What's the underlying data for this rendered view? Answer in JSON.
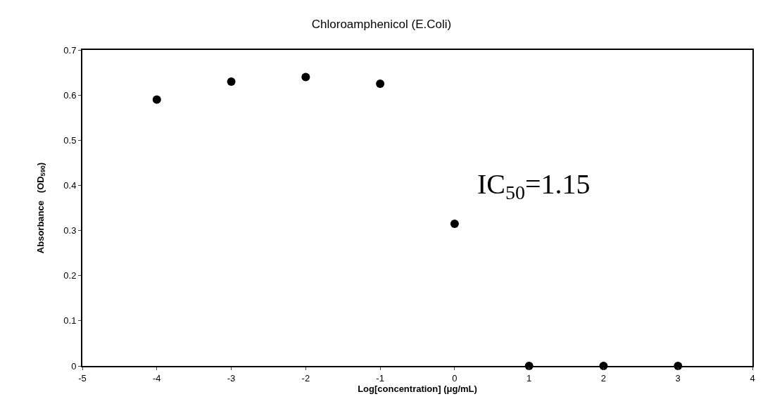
{
  "chart_data": {
    "type": "scatter",
    "title": "Chloroamphenicol (E.Coli)",
    "xlabel": "Log[concentration] (μg/mL)",
    "ylabel": "Absorbance   (OD$_{590}$)",
    "x": [
      -4,
      -3,
      -2,
      -1,
      0,
      1,
      2,
      3
    ],
    "series": [
      {
        "color": "#000000",
        "values": [
          0.59,
          0.63,
          0.64,
          0.625,
          0.315,
          0,
          0,
          0
        ]
      }
    ],
    "xlim": [
      -5,
      4
    ],
    "xticks": [
      -5,
      -4,
      -3,
      -2,
      -1,
      0,
      1,
      2,
      3,
      4
    ],
    "ylim": [
      0,
      0.7
    ],
    "yticks": [
      0,
      0.1,
      0.2,
      0.3,
      0.4,
      0.5,
      0.6,
      0.7
    ],
    "marker": "circle",
    "annotations": [
      "IC$_{50}$=1.15"
    ]
  }
}
